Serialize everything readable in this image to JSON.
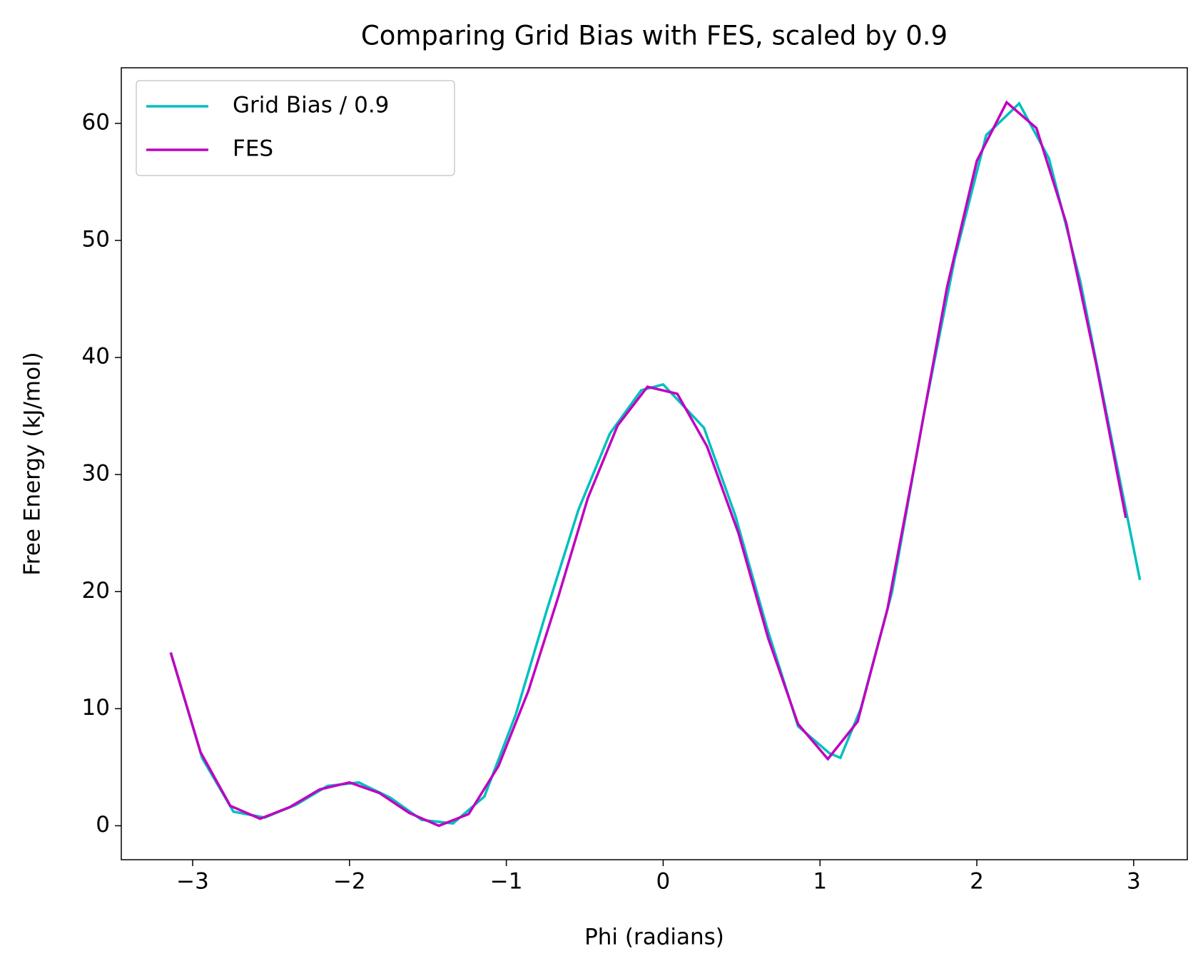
{
  "chart_data": {
    "type": "line",
    "title": "Comparing Grid Bias with FES, scaled by 0.9",
    "xlabel": "Phi (radians)",
    "ylabel": "Free Energy (kJ/mol)",
    "xlim": [
      -3.455,
      3.342
    ],
    "ylim": [
      -2.9,
      64.75
    ],
    "xticks": [
      {
        "value": -3,
        "label": "−3"
      },
      {
        "value": -2,
        "label": "−2"
      },
      {
        "value": -1,
        "label": "−1"
      },
      0,
      1,
      2,
      3
    ],
    "yticks": [
      0,
      10,
      20,
      30,
      40,
      50,
      60
    ],
    "legend": "upper left",
    "grid": false,
    "series": [
      {
        "name": "Grid Bias / 0.9",
        "color": "#00bfbf",
        "x": [
          -3.14,
          -2.94,
          -2.74,
          -2.54,
          -2.34,
          -2.14,
          -1.94,
          -1.74,
          -1.54,
          -1.34,
          -1.14,
          -0.94,
          -0.74,
          -0.54,
          -0.34,
          -0.14,
          0.0,
          0.26,
          0.46,
          0.66,
          0.86,
          1.06,
          1.13,
          1.26,
          1.46,
          1.66,
          1.86,
          2.06,
          2.27,
          2.46,
          2.66,
          2.86,
          3.04
        ],
        "values": [
          14.8,
          5.8,
          1.2,
          0.7,
          1.8,
          3.4,
          3.7,
          2.4,
          0.5,
          0.2,
          2.5,
          9.5,
          18.5,
          27.0,
          33.5,
          37.2,
          37.7,
          34.0,
          26.5,
          17.0,
          8.5,
          6.2,
          5.8,
          10.0,
          20.0,
          35.0,
          48.5,
          59.0,
          61.7,
          57.0,
          46.5,
          33.0,
          21.0
        ]
      },
      {
        "name": "FES",
        "color": "#bf00bf",
        "x": [
          -3.14,
          -2.95,
          -2.76,
          -2.57,
          -2.38,
          -2.19,
          -2.0,
          -1.81,
          -1.62,
          -1.43,
          -1.24,
          -1.05,
          -0.86,
          -0.67,
          -0.48,
          -0.29,
          -0.1,
          0.09,
          0.28,
          0.48,
          0.67,
          0.86,
          1.05,
          1.24,
          1.43,
          1.62,
          1.81,
          2.0,
          2.19,
          2.38,
          2.57,
          2.76,
          2.95
        ],
        "values": [
          14.8,
          6.3,
          1.7,
          0.6,
          1.6,
          3.1,
          3.7,
          2.8,
          1.1,
          0.0,
          1.0,
          5.1,
          11.5,
          19.5,
          28.0,
          34.2,
          37.5,
          36.9,
          32.4,
          25.0,
          16.0,
          8.7,
          5.7,
          8.9,
          18.5,
          32.0,
          46.0,
          56.8,
          61.8,
          59.6,
          51.5,
          39.5,
          26.3
        ]
      }
    ]
  }
}
